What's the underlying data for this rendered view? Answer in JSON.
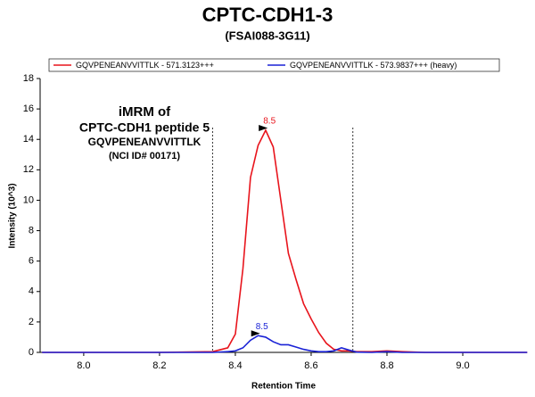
{
  "chart_data": {
    "type": "line",
    "title": "CPTC-CDH1-3",
    "subtitle": "(FSAI088-3G11)",
    "x_label": "Retention Time",
    "y_label": "Intensity (10^3)",
    "annotation_lines": [
      "iMRM of",
      "CPTC-CDH1 peptide 5",
      "GQVPENEANVVITTLK",
      "(NCI ID# 00171)"
    ],
    "x": [
      7.89,
      8.0,
      8.2,
      8.34,
      8.38,
      8.4,
      8.42,
      8.44,
      8.46,
      8.48,
      8.5,
      8.52,
      8.54,
      8.56,
      8.58,
      8.6,
      8.62,
      8.64,
      8.66,
      8.68,
      8.7,
      8.72,
      8.76,
      8.8,
      8.84,
      8.9,
      9.0,
      9.17
    ],
    "series": [
      {
        "name": "GQVPENEANVVITTLK - 571.3123+++",
        "color": "#e8141c",
        "values": [
          0,
          0,
          0,
          0.05,
          0.3,
          1.2,
          5.5,
          11.5,
          13.6,
          14.6,
          13.5,
          10.0,
          6.5,
          4.8,
          3.2,
          2.2,
          1.3,
          0.6,
          0.2,
          0.1,
          0.1,
          0.05,
          0.05,
          0.1,
          0.05,
          0,
          0,
          0
        ]
      },
      {
        "name": "GQVPENEANVVITTLK - 573.9837+++ (heavy)",
        "color": "#1a22d6",
        "values": [
          0,
          0,
          0,
          0,
          0.05,
          0.1,
          0.3,
          0.8,
          1.1,
          1.0,
          0.7,
          0.5,
          0.5,
          0.35,
          0.2,
          0.1,
          0.05,
          0.05,
          0.1,
          0.3,
          0.15,
          0.02,
          0,
          0.05,
          0,
          0,
          0,
          0
        ]
      }
    ],
    "peaks": [
      {
        "x": 8.49,
        "y": 14.6,
        "label": "8.5",
        "color": "#e8141c"
      },
      {
        "x": 8.47,
        "y": 1.1,
        "label": "8.5",
        "color": "#1a22d6"
      }
    ],
    "boundaries": [
      8.34,
      8.71
    ],
    "xlim": [
      7.885,
      9.167
    ],
    "ylim": [
      0,
      18
    ],
    "xticks": [
      {
        "value": 8,
        "label": "8.0"
      },
      {
        "value": 8.2,
        "label": "8.2"
      },
      {
        "value": 8.4,
        "label": "8.4"
      },
      {
        "value": 8.6,
        "label": "8.6"
      },
      {
        "value": 8.8,
        "label": "8.8"
      },
      {
        "value": 9,
        "label": "9.0"
      }
    ],
    "yticks": [
      0,
      2,
      4,
      6,
      8,
      10,
      12,
      14,
      16,
      18
    ]
  }
}
